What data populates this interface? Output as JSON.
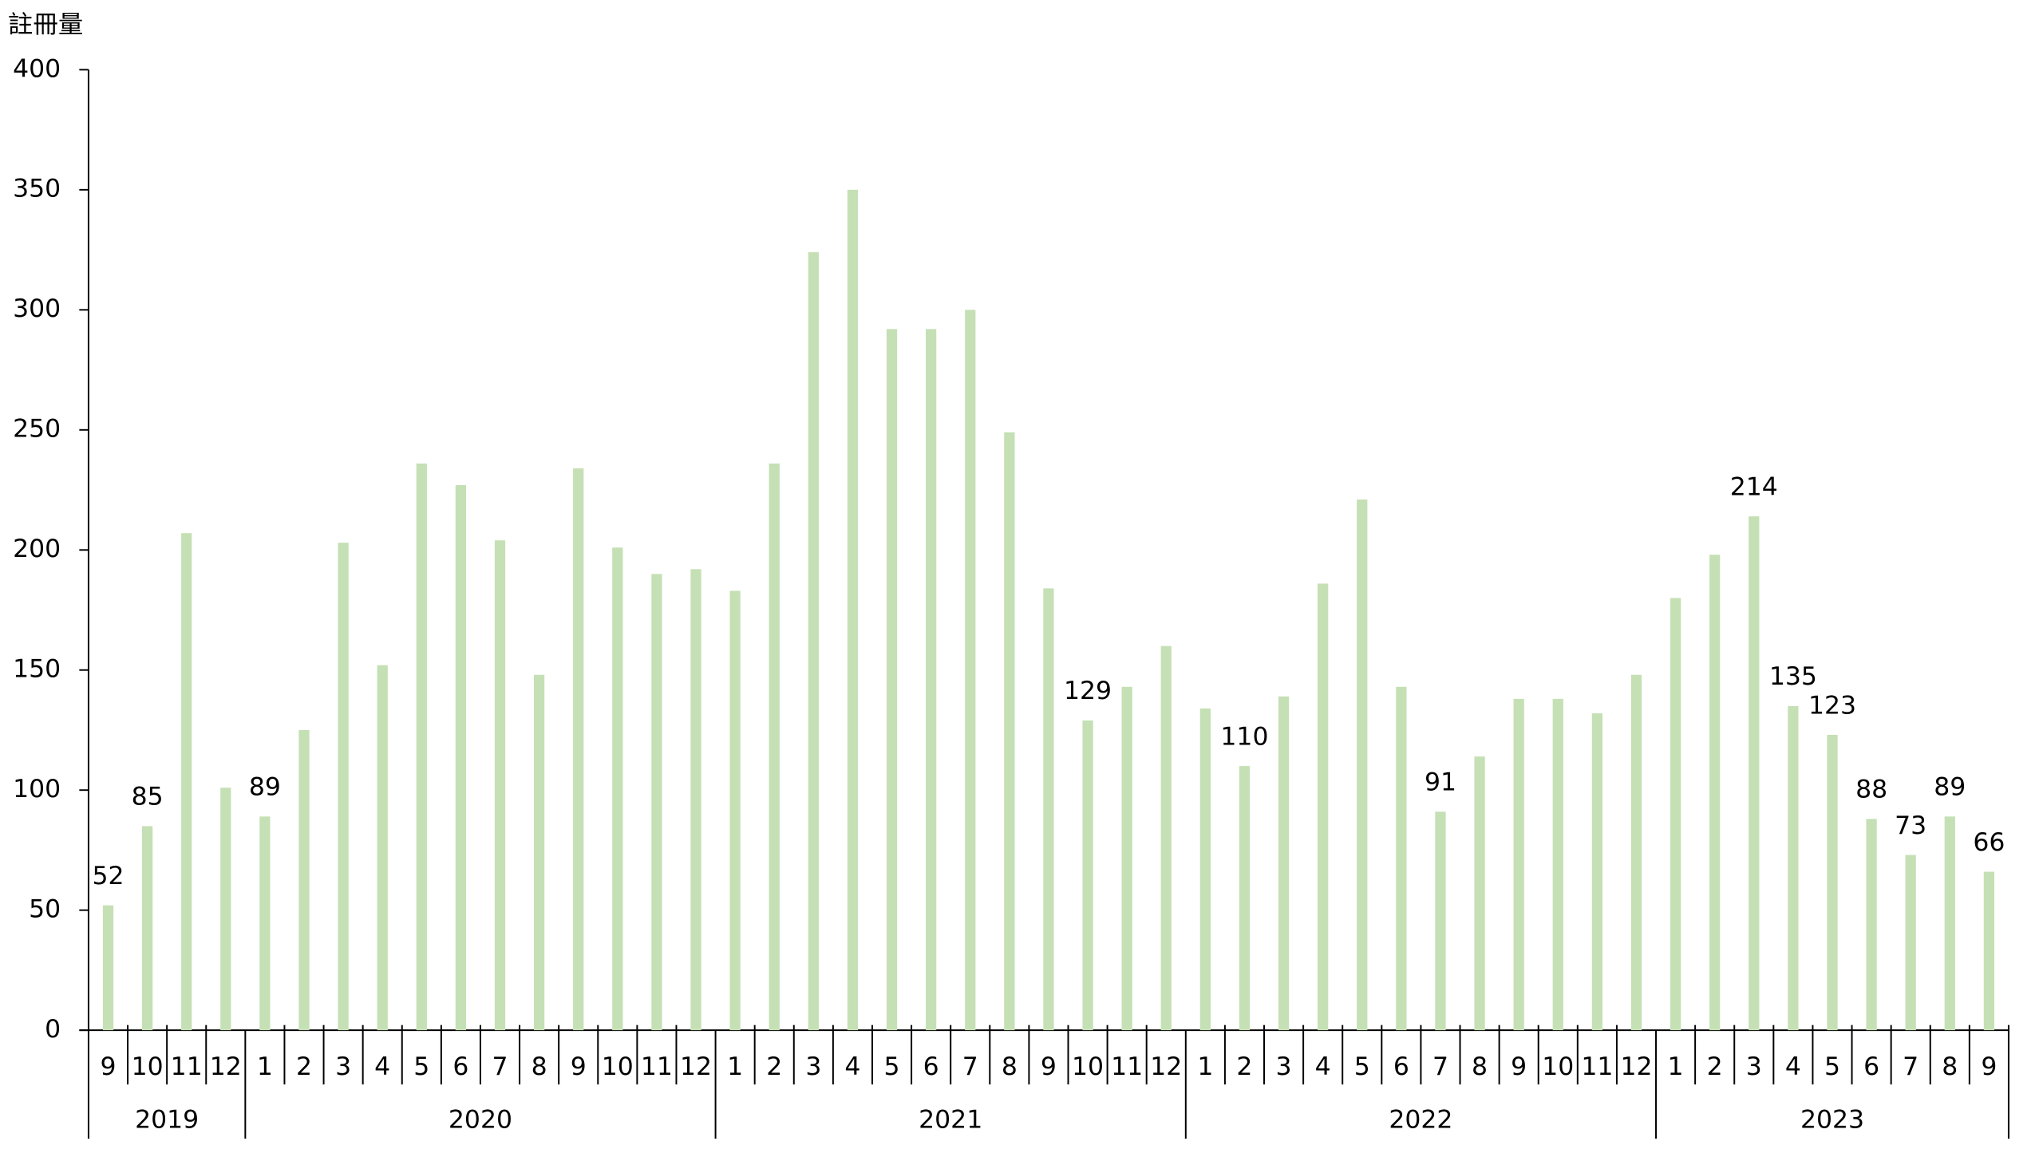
{
  "chart_data": {
    "type": "bar",
    "y_axis_label": "註冊量",
    "categories": [
      "9",
      "10",
      "11",
      "12",
      "1",
      "2",
      "3",
      "4",
      "5",
      "6",
      "7",
      "8",
      "9",
      "10",
      "11",
      "12",
      "1",
      "2",
      "3",
      "4",
      "5",
      "6",
      "7",
      "8",
      "9",
      "10",
      "11",
      "12",
      "1",
      "2",
      "3",
      "4",
      "5",
      "6",
      "7",
      "8",
      "9",
      "10",
      "11",
      "12",
      "1",
      "2",
      "3",
      "4",
      "5",
      "6",
      "7",
      "8",
      "9"
    ],
    "groups": [
      "2019",
      "2020",
      "2021",
      "2022",
      "2023"
    ],
    "values": [
      52,
      85,
      207,
      101,
      89,
      125,
      203,
      152,
      236,
      227,
      204,
      148,
      234,
      201,
      190,
      192,
      183,
      236,
      324,
      350,
      292,
      292,
      300,
      249,
      184,
      129,
      143,
      160,
      134,
      110,
      139,
      186,
      221,
      143,
      91,
      114,
      138,
      138,
      132,
      148,
      180,
      198,
      214,
      135,
      123,
      88,
      73,
      89,
      66
    ],
    "value_labels": [
      "52",
      "85",
      null,
      null,
      "89",
      null,
      null,
      null,
      null,
      null,
      null,
      null,
      null,
      null,
      null,
      null,
      null,
      null,
      null,
      null,
      null,
      null,
      null,
      null,
      null,
      "129",
      null,
      null,
      null,
      "110",
      null,
      null,
      null,
      null,
      "91",
      null,
      null,
      null,
      null,
      null,
      null,
      null,
      "214",
      "135",
      "123",
      "88",
      "73",
      "89",
      "66"
    ],
    "color": "#c5e0b4",
    "ylim": [
      0,
      400
    ],
    "yticks": [
      0,
      50,
      100,
      150,
      200,
      250,
      300,
      350,
      400
    ],
    "grid": false
  }
}
